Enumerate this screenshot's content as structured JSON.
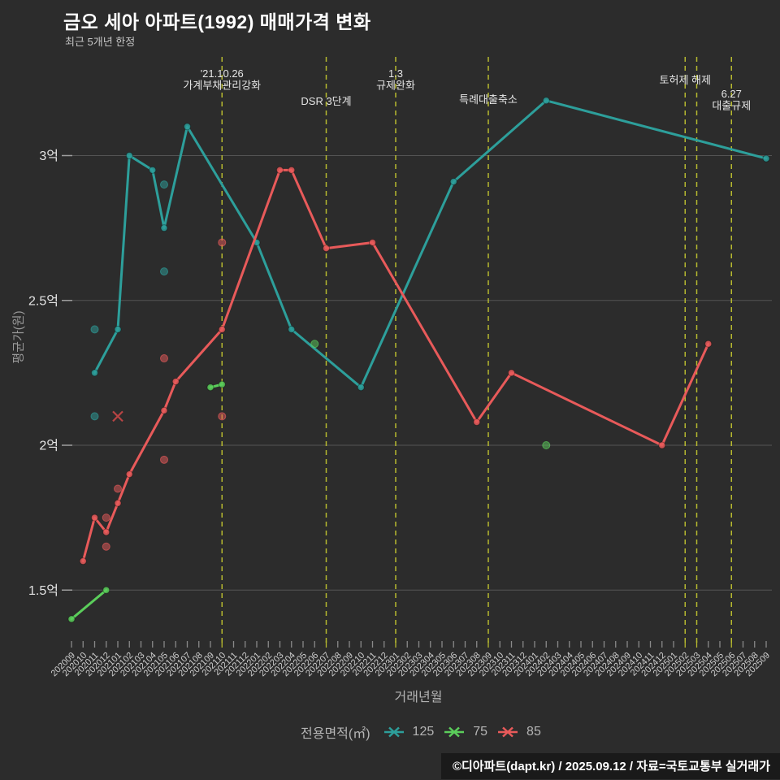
{
  "page": {
    "title": "금오 세아 아파트(1992) 매매가격 변화",
    "subtitle": "최근 5개년 한정",
    "footer": "©디아파트(dapt.kr) / 2025.09.12 / 자료=국토교통부 실거래가"
  },
  "colors": {
    "background": "#2c2c2c",
    "teal": "#2d9f9b",
    "green": "#5bce5b",
    "red": "#e85a5a",
    "event_line": "#b6b92f",
    "grid": "#545454",
    "grid_tick": "#9e9e9e",
    "axis_tick": "#8a8a8a",
    "axis_text": "#cfcfcf",
    "y_tick_text": "#e3e3e3",
    "annotation_text": "#e5e5e5",
    "cancel_marker": "#b84444"
  },
  "chart_data": {
    "type": "line",
    "title": "금오 세아 아파트(1992) 매매가격 변화",
    "xlabel": "거래년월",
    "ylabel": "평균가(원)",
    "ylim": [
      1.31,
      3.34
    ],
    "grid": true,
    "legend_position": "bottom",
    "x_categories": [
      "202009",
      "202010",
      "202011",
      "202012",
      "202101",
      "202102",
      "202103",
      "202104",
      "202105",
      "202106",
      "202107",
      "202108",
      "202109",
      "202110",
      "202111",
      "202112",
      "202201",
      "202202",
      "202203",
      "202204",
      "202205",
      "202206",
      "202207",
      "202208",
      "202209",
      "202210",
      "202211",
      "202212",
      "202301",
      "202302",
      "202303",
      "202304",
      "202305",
      "202306",
      "202307",
      "202308",
      "202309",
      "202310",
      "202311",
      "202312",
      "202401",
      "202402",
      "202403",
      "202404",
      "202405",
      "202406",
      "202407",
      "202408",
      "202409",
      "202410",
      "202411",
      "202412",
      "202501",
      "202502",
      "202503",
      "202504",
      "202505",
      "202506",
      "202507",
      "202508",
      "202509"
    ],
    "y_ticks": [
      {
        "label": "1.5억",
        "value": 1.5
      },
      {
        "label": "2억",
        "value": 2.0
      },
      {
        "label": "2.5억",
        "value": 2.5
      },
      {
        "label": "3억",
        "value": 3.0
      }
    ],
    "legend": {
      "title": "전용면적(㎡)",
      "items": [
        {
          "name": "125",
          "color_key": "teal"
        },
        {
          "name": "75",
          "color_key": "green"
        },
        {
          "name": "85",
          "color_key": "red"
        }
      ]
    },
    "series": [
      {
        "name": "125",
        "color_key": "teal",
        "segments": [
          [
            [
              "202011",
              2.25
            ],
            [
              "202101",
              2.4
            ],
            [
              "202102",
              3.0
            ],
            [
              "202104",
              2.95
            ],
            [
              "202105",
              2.75
            ],
            [
              "202107",
              3.1
            ],
            [
              "202201",
              2.7
            ],
            [
              "202204",
              2.4
            ],
            [
              "202210",
              2.2
            ],
            [
              "202306",
              2.91
            ],
            [
              "202402",
              3.19
            ],
            [
              "202509",
              2.99
            ]
          ]
        ]
      },
      {
        "name": "75",
        "color_key": "green",
        "segments": [
          [
            [
              "202009",
              1.4
            ],
            [
              "202012",
              1.5
            ]
          ],
          [
            [
              "202109",
              2.2
            ],
            [
              "202110",
              2.21
            ]
          ]
        ]
      },
      {
        "name": "85",
        "color_key": "red",
        "segments": [
          [
            [
              "202010",
              1.6
            ],
            [
              "202011",
              1.75
            ],
            [
              "202012",
              1.7
            ],
            [
              "202101",
              1.8
            ],
            [
              "202102",
              1.9
            ],
            [
              "202105",
              2.12
            ],
            [
              "202106",
              2.22
            ],
            [
              "202110",
              2.4
            ],
            [
              "202203",
              2.95
            ],
            [
              "202204",
              2.95
            ],
            [
              "202207",
              2.68
            ],
            [
              "202211",
              2.7
            ],
            [
              "202308",
              2.08
            ],
            [
              "202311",
              2.25
            ],
            [
              "202412",
              2.0
            ],
            [
              "202504",
              2.35
            ]
          ]
        ]
      }
    ],
    "scatter": [
      {
        "series": "125",
        "color_key": "teal",
        "points": [
          [
            "202011",
            2.4
          ],
          [
            "202011",
            2.1
          ],
          [
            "202105",
            2.9
          ],
          [
            "202105",
            2.6
          ]
        ]
      },
      {
        "series": "75",
        "color_key": "green",
        "points": [
          [
            "202206",
            2.35
          ],
          [
            "202402",
            2.0
          ]
        ]
      },
      {
        "series": "85",
        "color_key": "red",
        "points": [
          [
            "202012",
            1.75
          ],
          [
            "202012",
            1.65
          ],
          [
            "202101",
            1.85
          ],
          [
            "202105",
            2.3
          ],
          [
            "202105",
            1.95
          ],
          [
            "202110",
            2.7
          ],
          [
            "202110",
            2.1
          ]
        ]
      }
    ],
    "cancelled": [
      {
        "series": "85",
        "point": [
          "202101",
          2.1
        ]
      }
    ],
    "events": [
      {
        "month": "202110",
        "lines": [
          "'21.10.26",
          "가계부채관리강화"
        ],
        "baseline": 95
      },
      {
        "month": "202207",
        "lines": [
          "DSR 3단계"
        ],
        "baseline": 129
      },
      {
        "month": "202301",
        "lines": [
          "1.3",
          "규제완화"
        ],
        "baseline": 95
      },
      {
        "month": "202309",
        "lines": [
          "특례대출축소"
        ],
        "baseline": 127
      },
      {
        "month": "202502",
        "lines": [
          "토허제 해제"
        ],
        "baseline": 103
      },
      {
        "month": "202503",
        "lines": [],
        "baseline": 0
      },
      {
        "month": "202506",
        "lines": [
          "6.27",
          "대출규제"
        ],
        "baseline": 120
      }
    ]
  }
}
